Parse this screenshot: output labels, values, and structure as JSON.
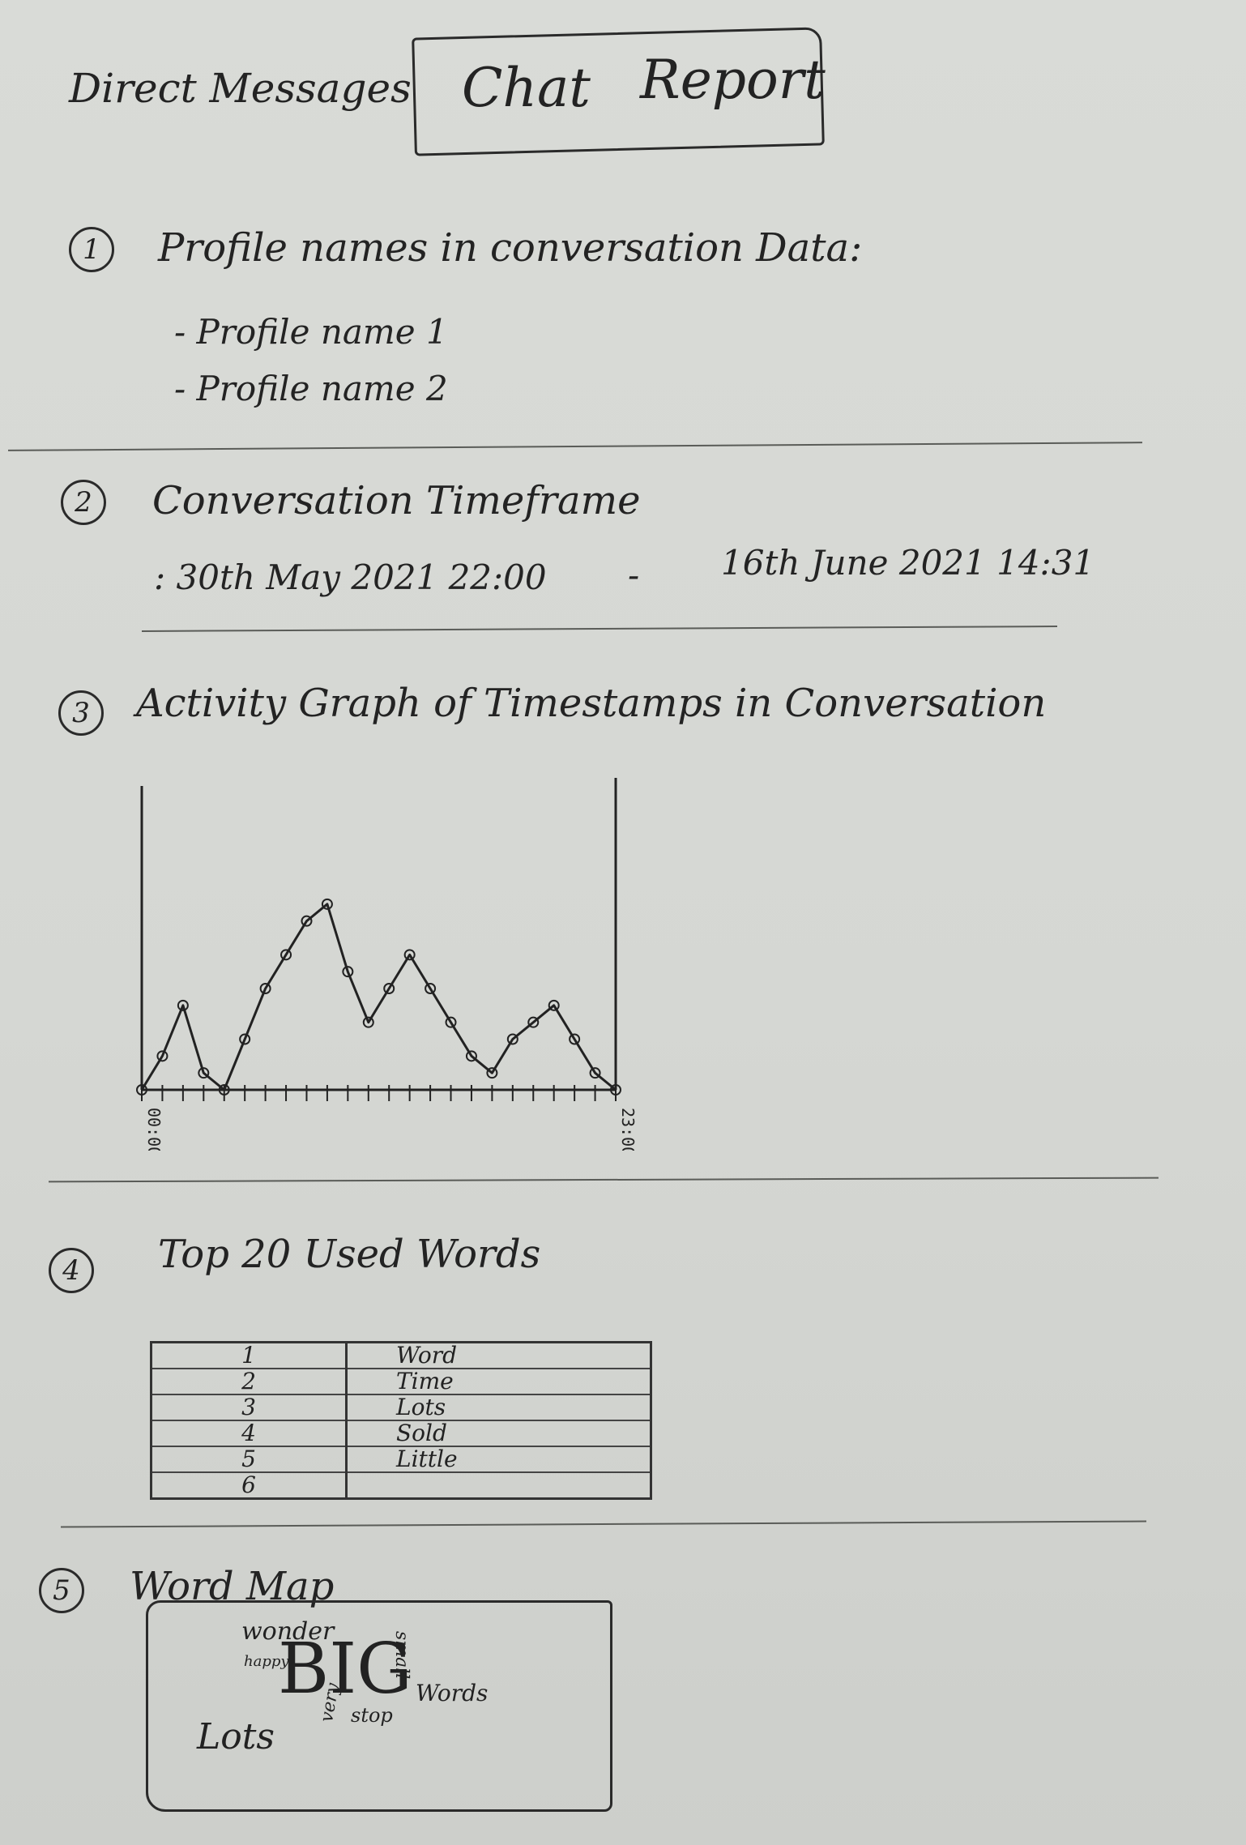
{
  "nav": {
    "direct_messages": "Direct Messages"
  },
  "header": {
    "title_left": "Chat",
    "title_right": "Report"
  },
  "sections": {
    "s1": {
      "number": "1",
      "heading": "Profile names in conversation Data:",
      "profiles": [
        "- Profile name 1",
        "- Profile name 2"
      ]
    },
    "s2": {
      "number": "2",
      "heading": "Conversation Timeframe",
      "range_start": ": 30th May 2021 22:00",
      "separator": "-",
      "range_end": "16th June 2021  14:31"
    },
    "s3": {
      "number": "3",
      "heading": "Activity Graph of Timestamps in Conversation"
    },
    "s4": {
      "number": "4",
      "heading": "Top 20 Used Words"
    },
    "s5": {
      "number": "5",
      "heading": "Word Map"
    }
  },
  "chart_data": {
    "type": "line",
    "x": [
      "00:00",
      "01:00",
      "02:00",
      "03:00",
      "04:00",
      "05:00",
      "06:00",
      "07:00",
      "08:00",
      "09:00",
      "10:00",
      "11:00",
      "12:00",
      "13:00",
      "14:00",
      "15:00",
      "16:00",
      "17:00",
      "18:00",
      "19:00",
      "20:00",
      "21:00",
      "22:00",
      "23:00"
    ],
    "y": [
      0,
      2,
      5,
      1,
      0,
      3,
      6,
      8,
      10,
      11,
      7,
      4,
      6,
      8,
      6,
      4,
      2,
      1,
      3,
      4,
      5,
      3,
      1,
      0
    ],
    "x_tick_labels": [
      "00:00",
      "23:00"
    ],
    "xlim": [
      "00:00",
      "23:00"
    ],
    "ylim": [
      0,
      18
    ],
    "grid": false
  },
  "top_words": {
    "rows": [
      {
        "rank": "1",
        "word": "Word"
      },
      {
        "rank": "2",
        "word": "Time"
      },
      {
        "rank": "3",
        "word": "Lots"
      },
      {
        "rank": "4",
        "word": "Sold"
      },
      {
        "rank": "5",
        "word": "Little"
      },
      {
        "rank": "6",
        "word": ""
      }
    ]
  },
  "word_map": {
    "words": [
      "wonder",
      "happy",
      "BIG",
      "small",
      "Words",
      "stop",
      "Lots",
      "very"
    ]
  }
}
